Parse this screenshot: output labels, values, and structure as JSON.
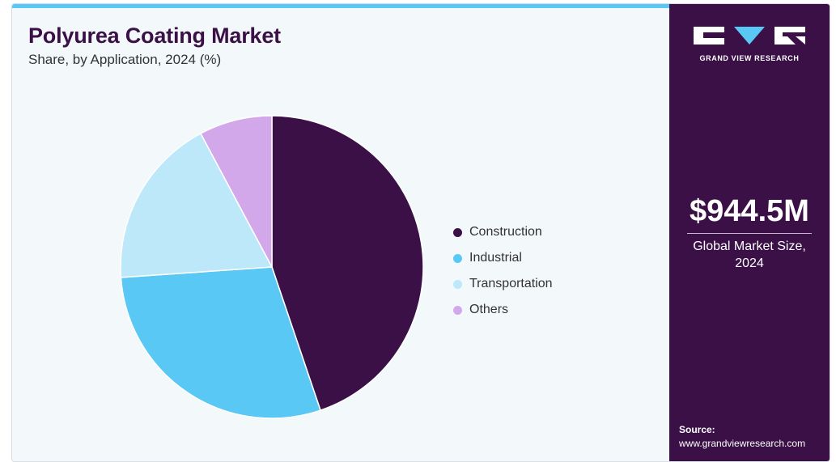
{
  "chart_data": {
    "type": "pie",
    "title": "Polyurea Coating Market",
    "subtitle": "Share, by Application, 2024 (%)",
    "slices": [
      {
        "label": "Construction",
        "value": 44.8,
        "color": "#3a1047"
      },
      {
        "label": "Industrial",
        "value": 29.1,
        "color": "#5ac8f5"
      },
      {
        "label": "Transportation",
        "value": 18.3,
        "color": "#bde8f9"
      },
      {
        "label": "Others",
        "value": 7.8,
        "color": "#d3a8eb"
      }
    ],
    "legend_position": "right"
  },
  "brand": {
    "name": "GRAND VIEW RESEARCH"
  },
  "highlight": {
    "value": "$944.5M",
    "caption": "Global Market Size, 2024"
  },
  "source": {
    "label": "Source:",
    "url": "www.grandviewresearch.com"
  },
  "colors": {
    "accent": "#5ac8f5",
    "panel": "#3a1047",
    "background": "#f3f8fb"
  }
}
